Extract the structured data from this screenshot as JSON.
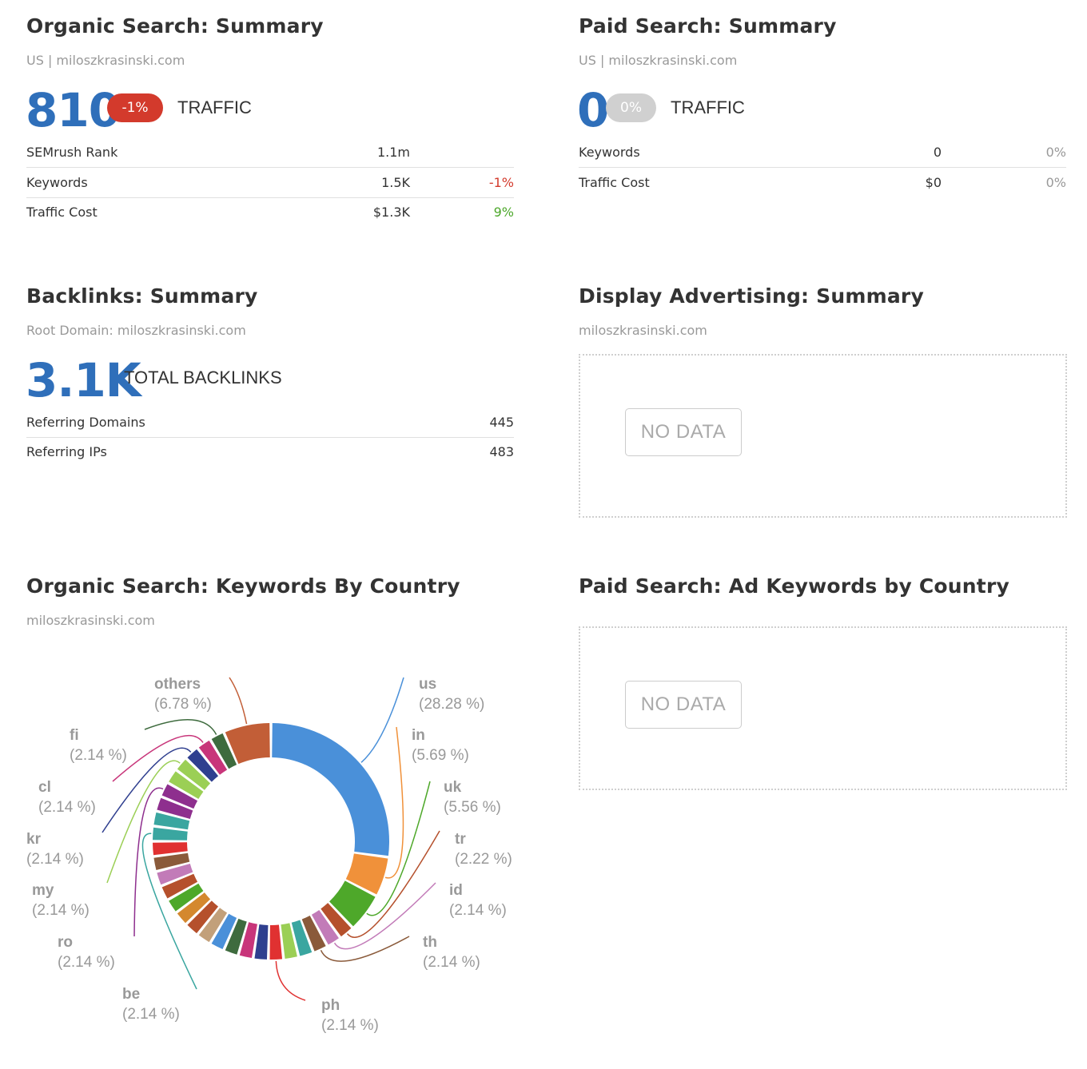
{
  "organic": {
    "title": "Organic Search: Summary",
    "subtitle": "US | miloszkrasinski.com",
    "traffic_value": "810",
    "traffic_change": "-1%",
    "traffic_label": "TRAFFIC",
    "metrics": [
      {
        "label": "SEMrush Rank",
        "value": "1.1m",
        "change": ""
      },
      {
        "label": "Keywords",
        "value": "1.5K",
        "change": "-1%"
      },
      {
        "label": "Traffic Cost",
        "value": "$1.3K",
        "change": "9%"
      }
    ]
  },
  "paid": {
    "title": "Paid Search: Summary",
    "subtitle": "US | miloszkrasinski.com",
    "traffic_value": "0",
    "traffic_change": "0%",
    "traffic_label": "TRAFFIC",
    "metrics": [
      {
        "label": "Keywords",
        "value": "0",
        "change": "0%"
      },
      {
        "label": "Traffic Cost",
        "value": "$0",
        "change": "0%"
      }
    ]
  },
  "backlinks": {
    "title": "Backlinks: Summary",
    "subtitle": "Root Domain: miloszkrasinski.com",
    "total_value": "3.1K",
    "total_label": "TOTAL BACKLINKS",
    "metrics": [
      {
        "label": "Referring Domains",
        "value": "445"
      },
      {
        "label": "Referring IPs",
        "value": "483"
      }
    ]
  },
  "display": {
    "title": "Display Advertising: Summary",
    "subtitle": "miloszkrasinski.com",
    "no_data": "NO DATA"
  },
  "keywords_by_country": {
    "title": "Organic Search: Keywords By Country",
    "subtitle": "miloszkrasinski.com"
  },
  "paid_by_country": {
    "title": "Paid Search: Ad Keywords by Country",
    "no_data": "NO DATA"
  },
  "colors": {
    "accent": "#2f6fba",
    "badge_negative": "#d33a2c",
    "badge_neutral": "#d0d0d0",
    "positive": "#4ca72a"
  },
  "chart_data": {
    "type": "pie",
    "donut": true,
    "unit": "%",
    "labeled_slices": [
      {
        "name": "us",
        "value": 28.28,
        "label": "(28.28 %)",
        "color": "#4a90d9"
      },
      {
        "name": "in",
        "value": 5.69,
        "label": "(5.69 %)",
        "color": "#f0913a"
      },
      {
        "name": "uk",
        "value": 5.56,
        "label": "(5.56 %)",
        "color": "#4ea82a"
      },
      {
        "name": "tr",
        "value": 2.22,
        "label": "(2.22 %)",
        "color": "#b5502c"
      },
      {
        "name": "id",
        "value": 2.14,
        "label": "(2.14 %)",
        "color": "#c27bb8"
      },
      {
        "name": "th",
        "value": 2.14,
        "label": "(2.14 %)",
        "color": "#8a5a3a"
      },
      {
        "name": "ph",
        "value": 2.14,
        "label": "(2.14 %)",
        "color": "#e03131"
      },
      {
        "name": "be",
        "value": 2.14,
        "label": "(2.14 %)",
        "color": "#3aa6a0"
      },
      {
        "name": "ro",
        "value": 2.14,
        "label": "(2.14 %)",
        "color": "#8e2f8e"
      },
      {
        "name": "my",
        "value": 2.14,
        "label": "(2.14 %)",
        "color": "#9bcf55"
      },
      {
        "name": "kr",
        "value": 2.14,
        "label": "(2.14 %)",
        "color": "#2f3f8f"
      },
      {
        "name": "cl",
        "value": 2.14,
        "label": "(2.14 %)",
        "color": "#c8357a"
      },
      {
        "name": "fi",
        "value": 2.14,
        "label": "(2.14 %)",
        "color": "#3e6b3e"
      },
      {
        "name": "others",
        "value": 6.78,
        "label": "(6.78 %)",
        "color": "#c25e37"
      }
    ],
    "unlabeled_slice_value": 2.14,
    "unlabeled_slice_colors": [
      "#3aa6a0",
      "#9bcf55",
      "#2f3f8f",
      "#c8357a",
      "#3e6b3e",
      "#4a90d9",
      "#c2a07a",
      "#b5502c",
      "#d4882e",
      "#4ea82a",
      "#b5502c",
      "#c27bb8",
      "#8a5a3a",
      "#e03131",
      "#3aa6a0",
      "#8e2f8e",
      "#9bcf55"
    ]
  }
}
